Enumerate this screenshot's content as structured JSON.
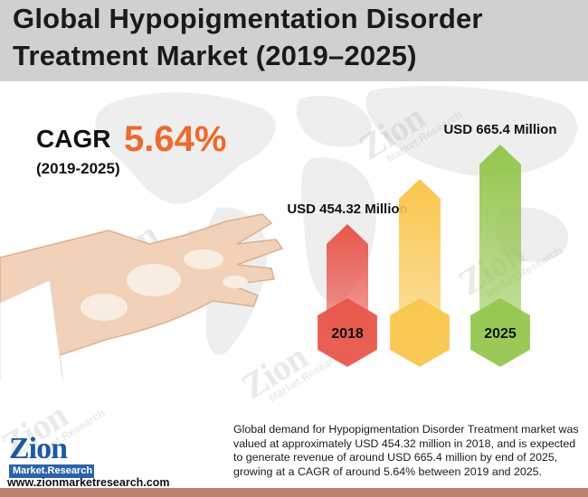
{
  "title": {
    "line1": "Global Hypopigmentation Disorder",
    "line2": "Treatment Market (2019–2025)"
  },
  "cagr": {
    "label": "CAGR",
    "value": "5.64%",
    "period": "(2019-2025)"
  },
  "colors": {
    "title_band": "#d2d0cf",
    "accent": "#ee6a2a",
    "bar_red": "#e8564b",
    "bar_yellow": "#f9c64d",
    "bar_green": "#95c64f",
    "bottom_band": "#b78270"
  },
  "chart_data": {
    "type": "bar",
    "title": "",
    "categories": [
      "2018",
      "",
      "2025"
    ],
    "values": [
      454.32,
      null,
      665.4
    ],
    "value_labels": [
      "USD 454.32 Million",
      "",
      "USD 665.4 Million"
    ],
    "unit": "USD Million",
    "xlabel": "",
    "ylabel": "",
    "grid": false,
    "legend": "none"
  },
  "description": "Global demand for Hypopigmentation Disorder Treatment market was valued at approximately USD 454.32 million in 2018, and is expected to generate revenue of around USD 665.4 million by end of 2025, growing at a CAGR of around 5.64% between 2019 and 2025.",
  "watermark": {
    "brand": "Zion",
    "sub": "Market.Research"
  },
  "logo": {
    "brand": "Zion",
    "sub": "Market.Research"
  },
  "website": "www.zionmarketresearch.com"
}
